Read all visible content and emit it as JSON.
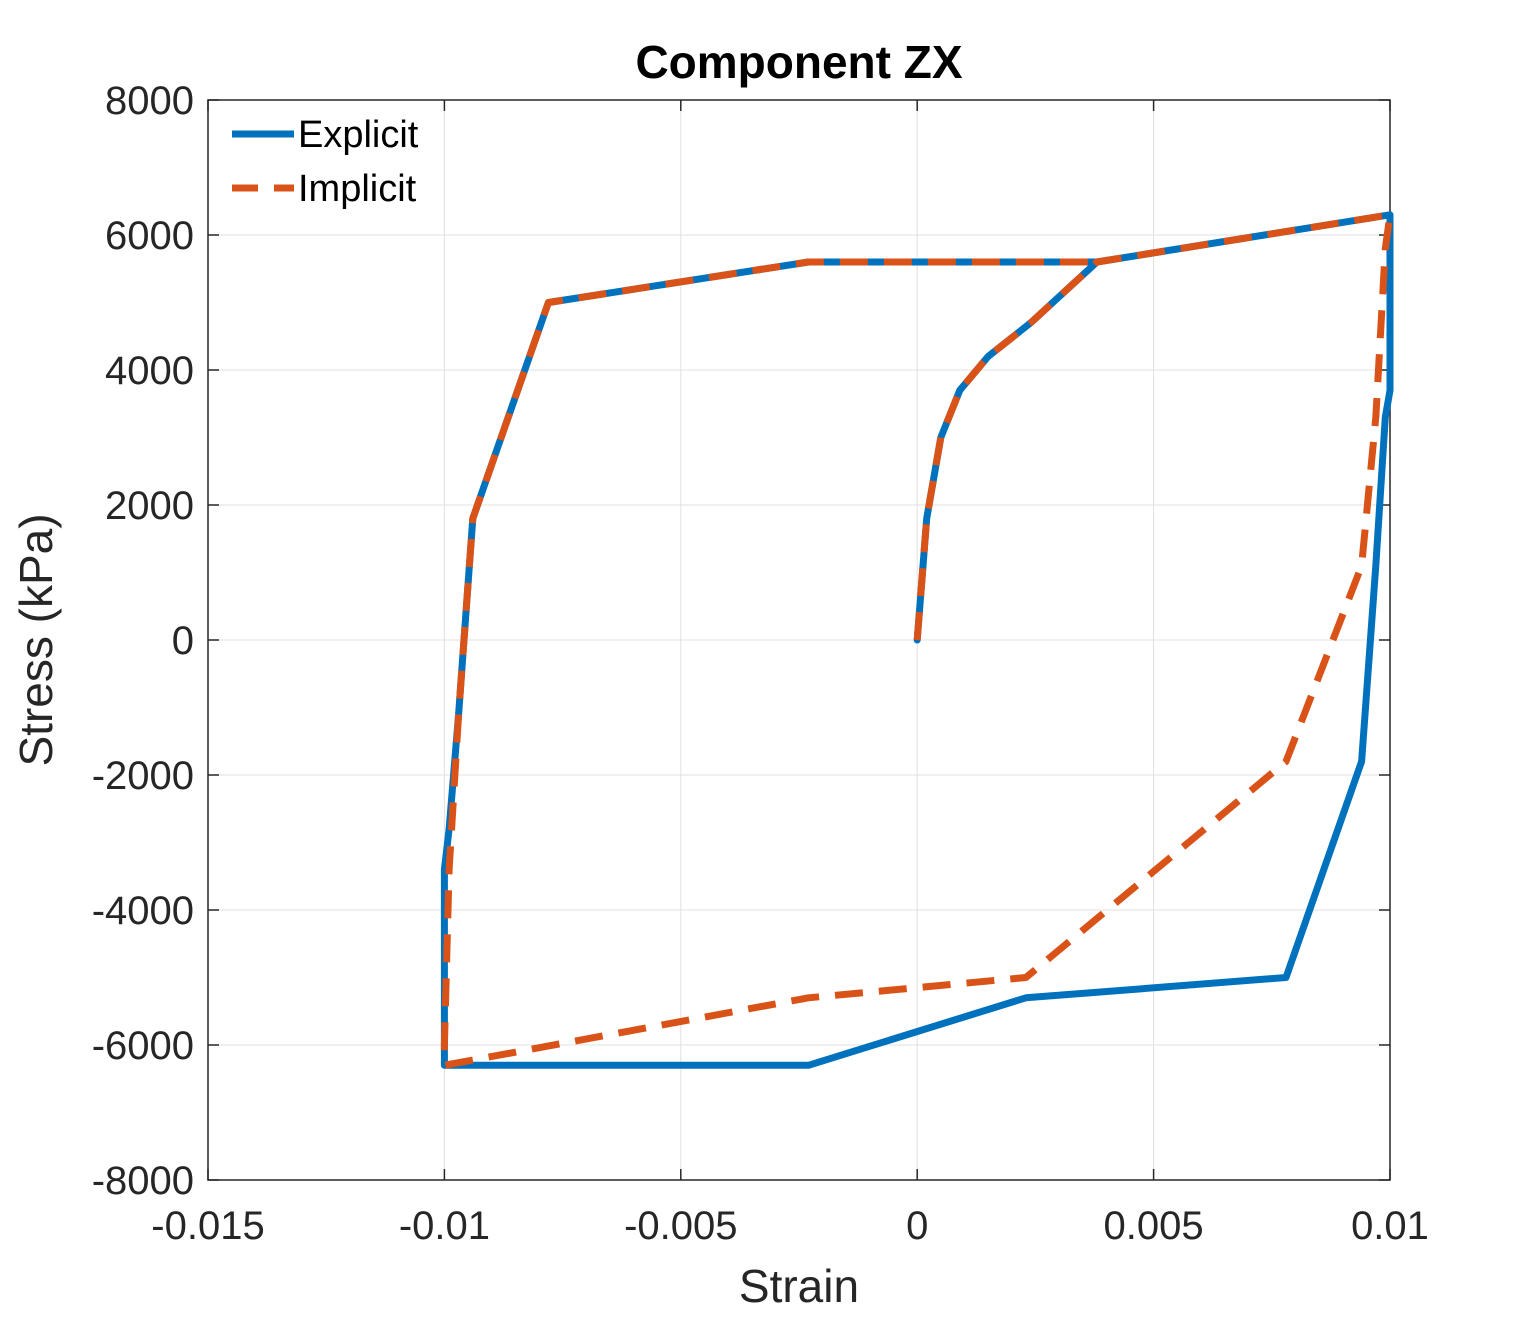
{
  "chart_data": {
    "type": "line",
    "title": "Component ZX",
    "xlabel": "Strain",
    "ylabel": "Stress (kPa)",
    "xlim": [
      -0.015,
      0.01
    ],
    "ylim": [
      -8000,
      8000
    ],
    "xticks": [
      -0.015,
      -0.01,
      -0.005,
      0,
      0.005,
      0.01
    ],
    "xtick_labels": [
      "-0.015",
      "-0.01",
      "-0.005",
      "0",
      "0.005",
      "0.01"
    ],
    "yticks": [
      -8000,
      -6000,
      -4000,
      -2000,
      0,
      2000,
      4000,
      6000,
      8000
    ],
    "ytick_labels": [
      "-8000",
      "-6000",
      "-4000",
      "-2000",
      "0",
      "2000",
      "4000",
      "6000",
      "8000"
    ],
    "grid": true,
    "legend_position": "top-left",
    "series": [
      {
        "name": "Explicit",
        "color": "#0072BD",
        "style": "solid",
        "x": [
          0,
          0.0002,
          0.0005,
          0.0009,
          0.0015,
          0.0024,
          0.0038,
          0.01,
          0.01,
          0.0099,
          0.0097,
          0.0094,
          0.0078,
          0.0023,
          -0.0023,
          -0.01,
          -0.01,
          -0.0099,
          -0.0097,
          -0.0094,
          -0.0078,
          -0.0023,
          0.0038
        ],
        "y": [
          0,
          1800,
          3000,
          3700,
          4200,
          4700,
          5600,
          6300,
          3700,
          3300,
          1100,
          -1800,
          -5000,
          -5300,
          -6300,
          -6300,
          -3400,
          -2800,
          -1100,
          1800,
          5000,
          5600,
          5600
        ]
      },
      {
        "name": "Implicit",
        "color": "#D95319",
        "style": "dashed",
        "x": [
          0,
          0.0002,
          0.0005,
          0.0009,
          0.0015,
          0.0024,
          0.0038,
          0.01,
          0.0099,
          0.0097,
          0.0094,
          0.0078,
          0.0023,
          -0.0023,
          -0.01,
          -0.01,
          -0.0099,
          -0.0097,
          -0.0094,
          -0.0078,
          -0.0023,
          0.0038
        ],
        "y": [
          0,
          1800,
          3000,
          3700,
          4200,
          4700,
          5600,
          6300,
          5800,
          3300,
          1100,
          -1800,
          -5000,
          -5300,
          -6300,
          -6000,
          -3400,
          -1100,
          1800,
          5000,
          5600,
          5600
        ]
      }
    ]
  }
}
